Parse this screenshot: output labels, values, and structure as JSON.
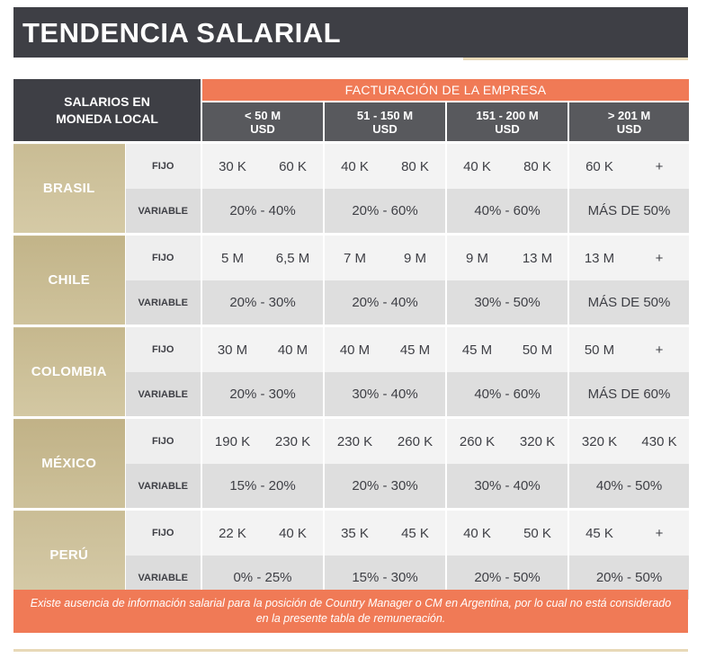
{
  "title": "TENDENCIA SALARIAL",
  "header": {
    "corner_line1": "SALARIOS EN",
    "corner_line2": "MONEDA LOCAL",
    "facturacion": "FACTURACIÓN DE LA EMPRESA",
    "ranges": [
      {
        "line1": "< 50 M",
        "line2": "USD"
      },
      {
        "line1": "51 - 150 M",
        "line2": "USD"
      },
      {
        "line1": "151 - 200 M",
        "line2": "USD"
      },
      {
        "line1": "> 201 M",
        "line2": "USD"
      }
    ]
  },
  "row_labels": {
    "fijo": "FIJO",
    "variable": "VARIABLE"
  },
  "countries": [
    {
      "name": "BRASIL",
      "fijo": [
        "30 K",
        "60 K",
        "40 K",
        "80 K",
        "40 K",
        "80 K",
        "60 K",
        "+"
      ],
      "variable": [
        "20% - 40%",
        "20% - 60%",
        "40% - 60%",
        "MÁS DE 50%"
      ]
    },
    {
      "name": "CHILE",
      "fijo": [
        "5 M",
        "6,5 M",
        "7 M",
        "9 M",
        "9 M",
        "13 M",
        "13 M",
        "+"
      ],
      "variable": [
        "20% - 30%",
        "20% - 40%",
        "30% - 50%",
        "MÁS DE 50%"
      ]
    },
    {
      "name": "COLOMBIA",
      "fijo": [
        "30 M",
        "40 M",
        "40 M",
        "45 M",
        "45 M",
        "50 M",
        "50 M",
        "+"
      ],
      "variable": [
        "20% - 30%",
        "30% - 40%",
        "40% - 60%",
        "MÁS DE 60%"
      ]
    },
    {
      "name": "MÉXICO",
      "fijo": [
        "190 K",
        "230 K",
        "230 K",
        "260 K",
        "260 K",
        "320 K",
        "320 K",
        "430 K"
      ],
      "variable": [
        "15% - 20%",
        "20% - 30%",
        "30% - 40%",
        "40% - 50%"
      ]
    },
    {
      "name": "PERÚ",
      "fijo": [
        "22 K",
        "40 K",
        "35 K",
        "45 K",
        "40 K",
        "50 K",
        "45 K",
        "+"
      ],
      "variable": [
        "0% - 25%",
        "15% - 30%",
        "20% - 50%",
        "20% - 50%"
      ]
    }
  ],
  "footnote": "Existe ausencia de información salarial para la posición de Country Manager o CM en Argentina, por lo cual no está considerado en la presente tabla de remuneración.",
  "colors": {
    "dark": "#3e3f45",
    "orange": "#f07a56",
    "tan": "#c7b98f",
    "range_gray": "#58595d"
  }
}
